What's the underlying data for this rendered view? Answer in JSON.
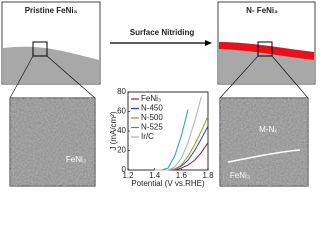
{
  "labels": {
    "left_title": "Pristine FeNi₃",
    "arrow_text": "Surface Nitriding",
    "right_title": "N- FeNi₃",
    "left_tem_label": "FeNi₃",
    "right_tem_label_top": "M-Nₓ",
    "right_tem_label_bottom": "FeNi₃"
  },
  "chart_data": {
    "type": "line",
    "xlabel": "Potential (V vs.RHE)",
    "ylabel": "J (mA/cm²)",
    "x": [
      1.4,
      1.45,
      1.5,
      1.55,
      1.6,
      1.65,
      1.7,
      1.75,
      1.8
    ],
    "series": [
      {
        "name": "FeNi₃",
        "color": "#8b1a4a",
        "values": [
          0,
          0,
          0,
          0,
          2,
          5,
          10,
          18,
          28
        ]
      },
      {
        "name": "N-450",
        "color": "#2a3fbf",
        "values": [
          0,
          0,
          0,
          1,
          4,
          10,
          20,
          32,
          45
        ]
      },
      {
        "name": "N-500",
        "color": "#9a9a20",
        "values": [
          0,
          0,
          0,
          1,
          5,
          14,
          26,
          40,
          55
        ]
      },
      {
        "name": "N-525",
        "color": "#1fa0a0",
        "values": [
          0,
          0,
          2,
          14,
          35,
          62,
          null,
          null,
          null
        ]
      },
      {
        "name": "Ir/C",
        "color": "#b0b0b0",
        "values": [
          0,
          0,
          0,
          3,
          12,
          28,
          50,
          75,
          null
        ]
      }
    ],
    "xlim": [
      1.2,
      1.8
    ],
    "xticks": [
      1.2,
      1.4,
      1.6,
      1.8
    ],
    "ylim": [
      0,
      80
    ],
    "yticks": [
      0,
      20,
      40,
      60,
      80
    ]
  }
}
